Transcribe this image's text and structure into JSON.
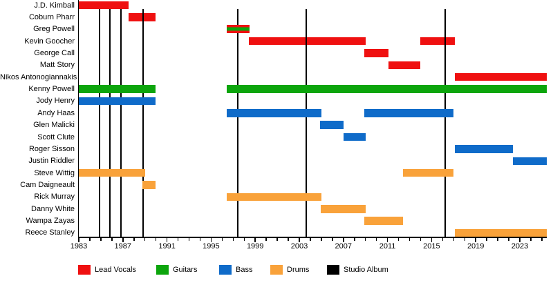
{
  "chart_data": {
    "type": "bar",
    "variant": "band-membership-timeline",
    "title": "",
    "grid": false,
    "x_axis": {
      "min": 1983.0,
      "max": 2025.45,
      "major_tick_labels": [
        1983,
        1987,
        1991,
        1995,
        1999,
        2003,
        2007,
        2011,
        2015,
        2019,
        2023
      ],
      "minor_tick_step": 1
    },
    "colors": {
      "lead_vocals": "#ef1010",
      "guitars": "#0ca50c",
      "bass": "#0f6bc9",
      "drums": "#f9a23a",
      "studio_album": "#000000"
    },
    "legend": {
      "position": "bottom",
      "items": [
        {
          "label": "Lead Vocals",
          "color_key": "lead_vocals"
        },
        {
          "label": "Guitars",
          "color_key": "guitars"
        },
        {
          "label": "Bass",
          "color_key": "bass"
        },
        {
          "label": "Drums",
          "color_key": "drums"
        },
        {
          "label": "Studio Album",
          "color_key": "studio_album"
        }
      ]
    },
    "members": [
      {
        "name": "J.D. Kimball",
        "roles": [
          "lead_vocals"
        ],
        "segments": [
          [
            1983.0,
            1987.5
          ]
        ]
      },
      {
        "name": "Coburn Pharr",
        "roles": [
          "lead_vocals"
        ],
        "segments": [
          [
            1987.5,
            1989.95
          ]
        ]
      },
      {
        "name": "Greg Powell",
        "roles": [
          "lead_vocals",
          "guitars"
        ],
        "segments": [
          [
            1996.4,
            1998.5
          ]
        ]
      },
      {
        "name": "Kevin Goocher",
        "roles": [
          "lead_vocals"
        ],
        "segments": [
          [
            1998.4,
            2009.0
          ],
          [
            2014.0,
            2017.1
          ]
        ]
      },
      {
        "name": "George Call",
        "roles": [
          "lead_vocals"
        ],
        "segments": [
          [
            2008.9,
            2011.1
          ]
        ]
      },
      {
        "name": "Matt Story",
        "roles": [
          "lead_vocals"
        ],
        "segments": [
          [
            2011.1,
            2014.0
          ]
        ]
      },
      {
        "name": "Nikos Antonogiannakis",
        "roles": [
          "lead_vocals"
        ],
        "segments": [
          [
            2017.1,
            2025.45
          ]
        ]
      },
      {
        "name": "Kenny Powell",
        "roles": [
          "guitars"
        ],
        "segments": [
          [
            1983.0,
            1989.95
          ],
          [
            1996.4,
            2025.45
          ]
        ]
      },
      {
        "name": "Jody Henry",
        "roles": [
          "bass"
        ],
        "segments": [
          [
            1983.0,
            1989.95
          ]
        ]
      },
      {
        "name": "Andy Haas",
        "roles": [
          "bass"
        ],
        "segments": [
          [
            1996.4,
            2005.0
          ],
          [
            2008.9,
            2017.0
          ]
        ]
      },
      {
        "name": "Glen Malicki",
        "roles": [
          "bass"
        ],
        "segments": [
          [
            2004.9,
            2007.0
          ]
        ]
      },
      {
        "name": "Scott Clute",
        "roles": [
          "bass"
        ],
        "segments": [
          [
            2007.0,
            2009.0
          ]
        ]
      },
      {
        "name": "Roger Sisson",
        "roles": [
          "bass"
        ],
        "segments": [
          [
            2017.1,
            2022.35
          ]
        ]
      },
      {
        "name": "Justin Riddler",
        "roles": [
          "bass"
        ],
        "segments": [
          [
            2022.35,
            2025.45
          ]
        ]
      },
      {
        "name": "Steve Wittig",
        "roles": [
          "drums"
        ],
        "segments": [
          [
            1983.0,
            1989.0
          ],
          [
            2012.4,
            2017.0
          ]
        ]
      },
      {
        "name": "Cam Daigneault",
        "roles": [
          "drums"
        ],
        "segments": [
          [
            1988.75,
            1989.95
          ]
        ]
      },
      {
        "name": "Rick Murray",
        "roles": [
          "drums"
        ],
        "segments": [
          [
            1996.4,
            2005.0
          ]
        ]
      },
      {
        "name": "Danny White",
        "roles": [
          "drums"
        ],
        "segments": [
          [
            2004.95,
            2009.0
          ]
        ]
      },
      {
        "name": "Wampa Zayas",
        "roles": [
          "drums"
        ],
        "segments": [
          [
            2008.9,
            2012.4
          ]
        ]
      },
      {
        "name": "Reece Stanley",
        "roles": [
          "drums"
        ],
        "segments": [
          [
            2017.1,
            2025.45
          ]
        ]
      }
    ],
    "studio_album_years": [
      1984.9,
      1985.85,
      1986.8,
      1988.85,
      1997.4,
      2003.6,
      2016.2
    ]
  }
}
